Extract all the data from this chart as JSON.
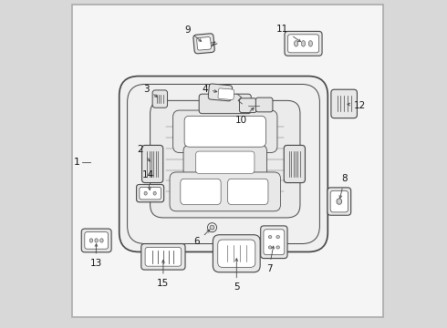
{
  "bg_color": "#f0f0f0",
  "inner_bg": "#f5f5f5",
  "line_color": "#444444",
  "label_color": "#111111",
  "fig_bg": "#d8d8d8",
  "border": [
    0.035,
    0.03,
    0.955,
    0.96
  ],
  "label_positions": {
    "1": [
      0.06,
      0.5,
      0.09,
      0.5
    ],
    "2": [
      0.3,
      0.55,
      0.27,
      0.55
    ],
    "3": [
      0.31,
      0.73,
      0.28,
      0.74
    ],
    "4": [
      0.48,
      0.7,
      0.44,
      0.7
    ],
    "5": [
      0.54,
      0.18,
      0.54,
      0.13
    ],
    "6": [
      0.46,
      0.295,
      0.42,
      0.27
    ],
    "7": [
      0.64,
      0.245,
      0.63,
      0.19
    ],
    "8": [
      0.855,
      0.4,
      0.855,
      0.445
    ],
    "9": [
      0.445,
      0.875,
      0.405,
      0.895
    ],
    "10": [
      0.62,
      0.685,
      0.6,
      0.665
    ],
    "11": [
      0.73,
      0.875,
      0.695,
      0.895
    ],
    "12": [
      0.865,
      0.695,
      0.895,
      0.695
    ],
    "13": [
      0.115,
      0.26,
      0.108,
      0.21
    ],
    "14": [
      0.27,
      0.4,
      0.265,
      0.445
    ],
    "15": [
      0.315,
      0.195,
      0.31,
      0.14
    ]
  }
}
